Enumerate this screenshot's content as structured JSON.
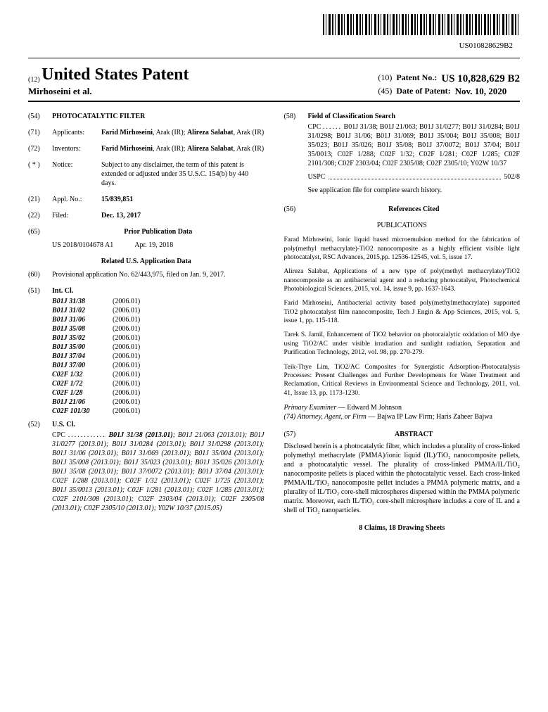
{
  "barcode_text": "US010828629B2",
  "header": {
    "kind_num": "(12)",
    "title": "United States Patent",
    "authors": "Mirhoseini et al.",
    "patent_no_num": "(10)",
    "patent_no_label": "Patent No.:",
    "patent_no": "US 10,828,629 B2",
    "date_num": "(45)",
    "date_label": "Date of Patent:",
    "date": "Nov. 10, 2020"
  },
  "f54": {
    "num": "(54)",
    "title": "PHOTOCATALYTIC FILTER"
  },
  "f71": {
    "num": "(71)",
    "label": "Applicants:",
    "body": "Farid Mirhoseini, Arak (IR); Alireza Salabat, Arak (IR)"
  },
  "f72": {
    "num": "(72)",
    "label": "Inventors:",
    "body": "Farid Mirhoseini, Arak (IR); Alireza Salabat, Arak (IR)"
  },
  "notice": {
    "num": "( * )",
    "label": "Notice:",
    "body": "Subject to any disclaimer, the term of this patent is extended or adjusted under 35 U.S.C. 154(b) by 440 days."
  },
  "f21": {
    "num": "(21)",
    "label": "Appl. No.:",
    "body": "15/839,851"
  },
  "f22": {
    "num": "(22)",
    "label": "Filed:",
    "body": "Dec. 13, 2017"
  },
  "f65": {
    "num": "(65)",
    "heading": "Prior Publication Data",
    "pub": "US 2018/0104678 A1",
    "pubdate": "Apr. 19, 2018"
  },
  "related": {
    "heading": "Related U.S. Application Data",
    "num": "(60)",
    "body": "Provisional application No. 62/443,975, filed on Jan. 9, 2017."
  },
  "f51": {
    "num": "(51)",
    "label": "Int. Cl.",
    "items": [
      {
        "sym": "B01J 31/38",
        "ver": "(2006.01)"
      },
      {
        "sym": "B01J 31/02",
        "ver": "(2006.01)"
      },
      {
        "sym": "B01J 31/06",
        "ver": "(2006.01)"
      },
      {
        "sym": "B01J 35/08",
        "ver": "(2006.01)"
      },
      {
        "sym": "B01J 35/02",
        "ver": "(2006.01)"
      },
      {
        "sym": "B01J 35/00",
        "ver": "(2006.01)"
      },
      {
        "sym": "B01J 37/04",
        "ver": "(2006.01)"
      },
      {
        "sym": "B01J 37/00",
        "ver": "(2006.01)"
      },
      {
        "sym": "C02F 1/32",
        "ver": "(2006.01)"
      },
      {
        "sym": "C02F 1/72",
        "ver": "(2006.01)"
      },
      {
        "sym": "C02F 1/28",
        "ver": "(2006.01)"
      },
      {
        "sym": "B01J 21/06",
        "ver": "(2006.01)"
      },
      {
        "sym": "C02F 101/30",
        "ver": "(2006.01)"
      }
    ]
  },
  "f52": {
    "num": "(52)",
    "label": "U.S. Cl.",
    "cpc_label": "CPC",
    "body": "B01J 31/38 (2013.01); B01J 21/063 (2013.01); B01J 31/0277 (2013.01); B01J 31/0284 (2013.01); B01J 31/0298 (2013.01); B01J 31/06 (2013.01); B01J 31/069 (2013.01); B01J 35/004 (2013.01); B01J 35/008 (2013.01); B01J 35/023 (2013.01); B01J 35/026 (2013.01); B01J 35/08 (2013.01); B01J 37/0072 (2013.01); B01J 37/04 (2013.01); C02F 1/288 (2013.01); C02F 1/32 (2013.01); C02F 1/725 (2013.01); B01J 35/0013 (2013.01); C02F 1/281 (2013.01); C02F 1/285 (2013.01); C02F 2101/308 (2013.01); C02F 2303/04 (2013.01); C02F 2305/08 (2013.01); C02F 2305/10 (2013.01); Y02W 10/37 (2015.05)"
  },
  "f58": {
    "num": "(58)",
    "label": "Field of Classification Search",
    "cpc_label": "CPC",
    "cpc_body": "B01J 31/38; B01J 21/063; B01J 31/0277; B01J 31/0284; B01J 31/0298; B01J 31/06; B01J 31/069; B01J 35/004; B01J 35/008; B01J 35/023; B01J 35/026; B01J 35/08; B01J 37/0072; B01J 37/04; B01J 35/0013; C02F 1/288; C02F 1/32; C02F 1/281; C02F 1/285; C02F 2101/308; C02F 2303/04; C02F 2305/08; C02F 2305/10; Y02W 10/37",
    "uspc_label": "USPC",
    "uspc_body": "502/8",
    "note": "See application file for complete search history."
  },
  "f56": {
    "num": "(56)",
    "heading": "References Cited"
  },
  "pubs_heading": "PUBLICATIONS",
  "pubs": [
    "Farad Mirhoseini, Ionic liquid based microemulsion method for the fabrication of poly(methyl methacrylate)-TiO2 nanocomposite as a highly efficient visible light photocatalyst, RSC Advances, 2015,pp. 12536-12545, vol. 5, issue 17.",
    "Alireza Salabat, Applications of a new type of poly(methyl methacrylate)/TiO2 nanocomposite as an antibacterial agent and a reducing photocatalyst, Photochemical Photobiological Sciences, 2015, vol. 14, issue 9, pp. 1637-1643.",
    "Farid Mirhoseini, Antibacterial activity based poly(methylmethacrylate) supported TiO2 photocatalyst film nanocomposite, Tech J Engin & App Sciences, 2015, vol. 5, issue 1, pp. 115-118.",
    "Tarek S. Jamil, Enhancement of TiO2 behavior on photocaialytic oxidation of MO dye using TiO2/AC under visible irradiation and sunlight radiation, Separation and Purification Technology, 2012, vol. 98, pp. 270-279.",
    "Teik-Thye Lim, TiO2/AC Composites for Synergistic Adsorption-Photocatalysis Processes: Present Challenges and Further Developments for Water Treatment and Reclamation, Critical Reviews in Environmental Science and Technology, 2011, vol. 41, Issue 13, pp. 1173-1230."
  ],
  "examiner": {
    "label": "Primary Examiner",
    "name": "Edward M Johnson"
  },
  "attorney": {
    "label": "(74) Attorney, Agent, or Firm",
    "name": "Bajwa IP Law Firm; Haris Zaheer Bajwa"
  },
  "abstract": {
    "num": "(57)",
    "heading": "ABSTRACT",
    "body": "Disclosed herein is a photocatalytic filter, which includes a plurality of cross-linked polymethyl methacrylate (PMMA)/ionic liquid (IL)/TiO₂ nanocomposite pellets, and a photocatalytic vessel. The plurality of cross-linked PMMA/IL/TiO₂ nanocomposite pellets is placed within the photocatalytic vessel. Each cross-linked PMMA/IL/TiO₂ nanocomposite pellet includes a PMMA polymeric matrix, and a plurality of IL/TiO₂ core-shell microspheres dispersed within the PMMA polymeric matrix. Moreover, each IL/TiO₂ core-shell microsphere includes a core of IL and a shell of TiO₂ nanoparticles."
  },
  "claims": "8 Claims, 18 Drawing Sheets"
}
